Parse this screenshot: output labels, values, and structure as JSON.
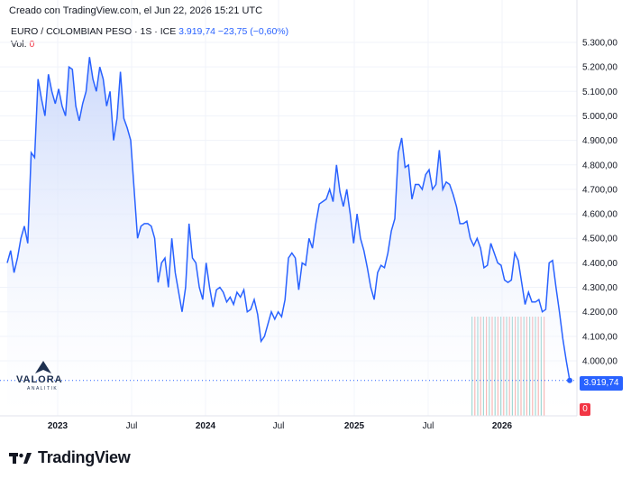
{
  "header": {
    "creator": "Creado con TradingView.com, el Jun 22, 2026 15:21 UTC",
    "symbol": "EURO / COLOMBIAN PESO · 1S · ICE",
    "last": "3.919,74",
    "change": "−23,75 (−0,60%)",
    "vol_label": "Vol.",
    "vol_value": "0"
  },
  "watermark": {
    "word": "VALORA",
    "sub": "ANALITIK"
  },
  "footer": {
    "brand": "TradingView"
  },
  "badges": {
    "price": "3.919,74",
    "volume": "0"
  },
  "colors": {
    "line": "#2962ff",
    "area_top": "#c9d7fb",
    "area_bottom": "#ffffff",
    "vol_up": "#26a69a",
    "vol_down": "#ef5350"
  },
  "chart_data": {
    "type": "area",
    "title": "",
    "xlabel": "",
    "ylabel": "",
    "ylim": [
      3800,
      5400
    ],
    "y_ticks": [
      "5.300,00",
      "5.200,00",
      "5.100,00",
      "5.000,00",
      "4.900,00",
      "4.800,00",
      "4.700,00",
      "4.600,00",
      "4.500,00",
      "4.400,00",
      "4.300,00",
      "4.200,00",
      "4.100,00",
      "4.000,00"
    ],
    "x_ticks": [
      "2023",
      "Jul",
      "2024",
      "Jul",
      "2025",
      "Jul",
      "2026"
    ],
    "series": [
      {
        "values": [
          4400,
          4450,
          4360,
          4420,
          4500,
          4550,
          4480,
          4850,
          4830,
          5150,
          5070,
          5000,
          5170,
          5100,
          5050,
          5110,
          5040,
          5000,
          5200,
          5190,
          5040,
          4980,
          5050,
          5100,
          5240,
          5150,
          5100,
          5200,
          5150,
          5040,
          5100,
          4900,
          4990,
          5180,
          4990,
          4950,
          4900,
          4700,
          4500,
          4550,
          4560,
          4560,
          4550,
          4500,
          4320,
          4400,
          4420,
          4300,
          4500,
          4360,
          4280,
          4200,
          4300,
          4560,
          4420,
          4400,
          4300,
          4250,
          4400,
          4300,
          4220,
          4290,
          4300,
          4280,
          4240,
          4260,
          4230,
          4280,
          4260,
          4290,
          4200,
          4210,
          4250,
          4190,
          4080,
          4100,
          4150,
          4200,
          4170,
          4200,
          4180,
          4250,
          4420,
          4440,
          4420,
          4290,
          4400,
          4390,
          4500,
          4460,
          4560,
          4640,
          4650,
          4660,
          4700,
          4650,
          4800,
          4690,
          4630,
          4700,
          4600,
          4480,
          4600,
          4500,
          4450,
          4380,
          4300,
          4250,
          4360,
          4390,
          4380,
          4440,
          4530,
          4580,
          4850,
          4910,
          4790,
          4800,
          4660,
          4720,
          4720,
          4700,
          4760,
          4780,
          4700,
          4720,
          4860,
          4700,
          4730,
          4720,
          4680,
          4630,
          4560,
          4560,
          4570,
          4500,
          4470,
          4500,
          4460,
          4380,
          4390,
          4480,
          4440,
          4400,
          4390,
          4330,
          4320,
          4330,
          4440,
          4410,
          4320,
          4230,
          4280,
          4240,
          4240,
          4250,
          4200,
          4210,
          4400,
          4410,
          4300,
          4200,
          4090,
          4000,
          3920
        ]
      }
    ]
  }
}
